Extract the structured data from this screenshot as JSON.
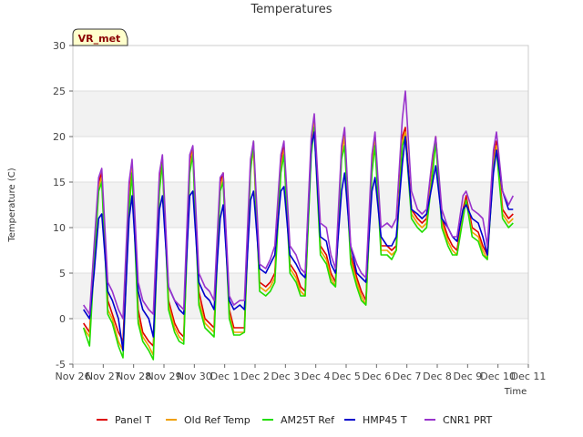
{
  "chart_data": {
    "type": "line",
    "title": "Temperatures",
    "xlabel": "Time",
    "ylabel": "Temperature (C)",
    "badge": "VR_met",
    "ylim": [
      -5,
      30
    ],
    "yticks": [
      -5,
      0,
      5,
      10,
      15,
      20,
      25,
      30
    ],
    "xlim": [
      0,
      15
    ],
    "xticks": [
      {
        "x": 0,
        "label": "Nov 26"
      },
      {
        "x": 1,
        "label": "Nov 27"
      },
      {
        "x": 2,
        "label": "Nov 28"
      },
      {
        "x": 3,
        "label": "Nov 29"
      },
      {
        "x": 4,
        "label": "Nov 30"
      },
      {
        "x": 5,
        "label": "Dec 1"
      },
      {
        "x": 6,
        "label": "Dec 2"
      },
      {
        "x": 7,
        "label": "Dec 3"
      },
      {
        "x": 8,
        "label": "Dec 4"
      },
      {
        "x": 9,
        "label": "Dec 5"
      },
      {
        "x": 10,
        "label": "Dec 6"
      },
      {
        "x": 11,
        "label": "Dec 7"
      },
      {
        "x": 12,
        "label": "Dec 8"
      },
      {
        "x": 13,
        "label": "Dec 9"
      },
      {
        "x": 14,
        "label": "Dec 10"
      },
      {
        "x": 15,
        "label": "Dec 11"
      }
    ],
    "grid": true,
    "legend_position": "bottom",
    "series": [
      {
        "name": "Panel T",
        "color": "#dd0000",
        "x": [
          0.35,
          0.55,
          0.7,
          0.85,
          0.95,
          1.15,
          1.3,
          1.5,
          1.65,
          1.85,
          1.95,
          2.15,
          2.3,
          2.5,
          2.65,
          2.85,
          2.95,
          3.15,
          3.35,
          3.5,
          3.65,
          3.85,
          3.95,
          4.15,
          4.35,
          4.5,
          4.65,
          4.85,
          4.95,
          5.15,
          5.3,
          5.5,
          5.65,
          5.85,
          5.95,
          6.15,
          6.35,
          6.5,
          6.65,
          6.85,
          6.95,
          7.15,
          7.35,
          7.5,
          7.65,
          7.85,
          7.95,
          8.15,
          8.35,
          8.5,
          8.65,
          8.85,
          8.95,
          9.15,
          9.35,
          9.5,
          9.65,
          9.85,
          9.95,
          10.15,
          10.35,
          10.5,
          10.65,
          10.85,
          10.95,
          11.15,
          11.35,
          11.5,
          11.65,
          11.85,
          11.95,
          12.15,
          12.35,
          12.5,
          12.65,
          12.85,
          12.95,
          13.15,
          13.35,
          13.5,
          13.65,
          13.85,
          13.95,
          14.15,
          14.35,
          14.5
        ],
        "y": [
          -0.5,
          -1.5,
          7,
          15,
          16,
          2,
          0.5,
          -1.5,
          -2.5,
          13,
          17,
          1,
          -1.5,
          -2.5,
          -3,
          15,
          17.5,
          2,
          -0.5,
          -1.5,
          -2,
          17,
          18.8,
          3,
          0,
          -0.5,
          -1,
          15,
          16,
          1,
          -1,
          -1,
          -1,
          17,
          19,
          4,
          3.5,
          4,
          5,
          17,
          19,
          6,
          5,
          3.5,
          3,
          19,
          22,
          8,
          7,
          5,
          4,
          18.5,
          20.5,
          7,
          4.5,
          3,
          2,
          17,
          20,
          8,
          8,
          7.5,
          8,
          20,
          21,
          12,
          11,
          10.5,
          11,
          17,
          20,
          11,
          9,
          8,
          7.5,
          12,
          13.5,
          10,
          9.5,
          8,
          7,
          17.5,
          19.5,
          12,
          11,
          11.5
        ]
      },
      {
        "name": "Old Ref Temp",
        "color": "#f0a000",
        "x": [
          0.35,
          0.55,
          0.7,
          0.85,
          0.95,
          1.15,
          1.3,
          1.5,
          1.65,
          1.85,
          1.95,
          2.15,
          2.3,
          2.5,
          2.65,
          2.85,
          2.95,
          3.15,
          3.35,
          3.5,
          3.65,
          3.85,
          3.95,
          4.15,
          4.35,
          4.5,
          4.65,
          4.85,
          4.95,
          5.15,
          5.3,
          5.5,
          5.65,
          5.85,
          5.95,
          6.15,
          6.35,
          6.5,
          6.65,
          6.85,
          6.95,
          7.15,
          7.35,
          7.5,
          7.65,
          7.85,
          7.95,
          8.15,
          8.35,
          8.5,
          8.65,
          8.85,
          8.95,
          9.15,
          9.35,
          9.5,
          9.65,
          9.85,
          9.95,
          10.15,
          10.35,
          10.5,
          10.65,
          10.85,
          10.95,
          11.15,
          11.35,
          11.5,
          11.65,
          11.85,
          11.95,
          12.15,
          12.35,
          12.5,
          12.65,
          12.85,
          12.95,
          13.15,
          13.35,
          13.5,
          13.65,
          13.85,
          13.95,
          14.15,
          14.35,
          14.5
        ],
        "y": [
          -1,
          -2,
          6,
          14.5,
          15.5,
          1,
          0,
          -2.5,
          -3.5,
          12.5,
          16.5,
          0,
          -2,
          -3,
          -4,
          14.5,
          17,
          1.5,
          -1,
          -2,
          -2.5,
          16.5,
          18.5,
          2,
          -0.5,
          -1,
          -1.5,
          14.5,
          15.5,
          0.5,
          -1.5,
          -1.5,
          -1.5,
          16.5,
          18.5,
          3.5,
          3,
          3.5,
          4.5,
          16.5,
          18.5,
          5.5,
          4.5,
          3,
          2.5,
          18.5,
          21.5,
          7.5,
          6.5,
          4.5,
          3.5,
          18,
          20,
          6.5,
          4,
          2.5,
          1.5,
          16.5,
          19.5,
          7.5,
          7.5,
          7,
          7.5,
          19.5,
          20.5,
          11.5,
          10.5,
          10,
          10.5,
          16.5,
          19.5,
          10.5,
          8.5,
          7.5,
          7,
          11.5,
          13,
          9.5,
          9,
          7.5,
          6.5,
          17,
          19,
          11.5,
          10.5,
          11
        ]
      },
      {
        "name": "AM25T Ref",
        "color": "#22dd00",
        "x": [
          0.35,
          0.55,
          0.7,
          0.85,
          0.95,
          1.15,
          1.3,
          1.5,
          1.65,
          1.85,
          1.95,
          2.15,
          2.3,
          2.5,
          2.65,
          2.85,
          2.95,
          3.15,
          3.35,
          3.5,
          3.65,
          3.85,
          3.95,
          4.15,
          4.35,
          4.5,
          4.65,
          4.85,
          4.95,
          5.15,
          5.3,
          5.5,
          5.65,
          5.85,
          5.95,
          6.15,
          6.35,
          6.5,
          6.65,
          6.85,
          6.95,
          7.15,
          7.35,
          7.5,
          7.65,
          7.85,
          7.95,
          8.15,
          8.35,
          8.5,
          8.65,
          8.85,
          8.95,
          9.15,
          9.35,
          9.5,
          9.65,
          9.85,
          9.95,
          10.15,
          10.35,
          10.5,
          10.65,
          10.85,
          10.95,
          11.15,
          11.35,
          11.5,
          11.65,
          11.85,
          11.95,
          12.15,
          12.35,
          12.5,
          12.65,
          12.85,
          12.95,
          13.15,
          13.35,
          13.5,
          13.65,
          13.85,
          13.95,
          14.15,
          14.35,
          14.5
        ],
        "y": [
          -1,
          -3,
          6,
          14,
          15,
          0.5,
          -0.5,
          -3,
          -4.3,
          12,
          16,
          -0.5,
          -2.5,
          -3.5,
          -4.5,
          14,
          17,
          1,
          -1.5,
          -2.5,
          -2.8,
          16,
          18,
          1.5,
          -1,
          -1.5,
          -2,
          14,
          15,
          0,
          -1.8,
          -1.8,
          -1.5,
          16,
          19.5,
          3,
          2.5,
          3,
          4,
          16,
          18,
          5,
          4,
          2.5,
          2.5,
          18,
          21,
          7,
          6,
          4,
          3.5,
          17.5,
          19,
          6,
          3.5,
          2,
          1.5,
          16,
          19,
          7,
          7,
          6.5,
          7.5,
          19,
          20,
          11,
          10,
          9.5,
          10,
          16,
          19.5,
          10,
          8,
          7,
          7,
          11,
          13,
          9,
          8.5,
          7,
          6.5,
          16.5,
          18.5,
          11,
          10,
          10.5
        ]
      },
      {
        "name": "HMP45 T",
        "color": "#0000cc",
        "x": [
          0.35,
          0.55,
          0.7,
          0.85,
          0.95,
          1.15,
          1.3,
          1.5,
          1.65,
          1.85,
          1.95,
          2.15,
          2.3,
          2.5,
          2.65,
          2.85,
          2.95,
          3.15,
          3.35,
          3.5,
          3.65,
          3.85,
          3.95,
          4.15,
          4.35,
          4.5,
          4.65,
          4.85,
          4.95,
          5.15,
          5.3,
          5.5,
          5.65,
          5.85,
          5.95,
          6.15,
          6.35,
          6.5,
          6.65,
          6.85,
          6.95,
          7.15,
          7.35,
          7.5,
          7.65,
          7.85,
          7.95,
          8.15,
          8.35,
          8.5,
          8.65,
          8.85,
          8.95,
          9.15,
          9.35,
          9.5,
          9.65,
          9.85,
          9.95,
          10.15,
          10.35,
          10.5,
          10.65,
          10.85,
          10.95,
          11.15,
          11.35,
          11.5,
          11.65,
          11.85,
          11.95,
          12.15,
          12.35,
          12.5,
          12.65,
          12.85,
          12.95,
          13.15,
          13.35,
          13.5,
          13.65,
          13.85,
          13.95,
          14.15,
          14.35,
          14.5
        ],
        "y": [
          1,
          0,
          5,
          11,
          11.5,
          3,
          2,
          0,
          -3.5,
          11,
          13.5,
          3,
          1,
          0,
          -2,
          12,
          13.5,
          3.5,
          2,
          1,
          0.5,
          13.5,
          14,
          4,
          2.5,
          2,
          1,
          11,
          12.5,
          2,
          1,
          1.5,
          1,
          13,
          14,
          5.5,
          5,
          6,
          7,
          14,
          14.5,
          7,
          6,
          5,
          4.5,
          19,
          20.5,
          9,
          8.5,
          6,
          5,
          14,
          16,
          8,
          5,
          4.5,
          4,
          14,
          15.5,
          9,
          8,
          8,
          9,
          17,
          20,
          12,
          11.5,
          11,
          11.5,
          15,
          16.8,
          11,
          10,
          9,
          8.5,
          12,
          12.5,
          11,
          10.5,
          9,
          7,
          16,
          18.5,
          14,
          12,
          12
        ]
      },
      {
        "name": "CNR1 PRT",
        "color": "#9933cc",
        "x": [
          0.35,
          0.55,
          0.7,
          0.85,
          0.95,
          1.15,
          1.3,
          1.5,
          1.65,
          1.85,
          1.95,
          2.15,
          2.3,
          2.5,
          2.65,
          2.85,
          2.95,
          3.15,
          3.35,
          3.5,
          3.65,
          3.85,
          3.95,
          4.15,
          4.35,
          4.5,
          4.65,
          4.85,
          4.95,
          5.15,
          5.3,
          5.5,
          5.65,
          5.85,
          5.95,
          6.15,
          6.35,
          6.5,
          6.65,
          6.85,
          6.95,
          7.15,
          7.35,
          7.5,
          7.65,
          7.85,
          7.95,
          8.15,
          8.35,
          8.5,
          8.65,
          8.85,
          8.95,
          9.15,
          9.35,
          9.5,
          9.65,
          9.85,
          9.95,
          10.15,
          10.35,
          10.5,
          10.65,
          10.85,
          10.95,
          11.15,
          11.35,
          11.5,
          11.65,
          11.85,
          11.95,
          12.15,
          12.35,
          12.5,
          12.65,
          12.85,
          12.95,
          13.15,
          13.35,
          13.5,
          13.65,
          13.85,
          13.95,
          14.15,
          14.35,
          14.5
        ],
        "y": [
          1.5,
          0.5,
          8,
          15.5,
          16.5,
          4,
          3,
          1,
          0,
          15,
          17.5,
          4,
          2,
          1,
          0.5,
          16,
          18,
          3.5,
          2,
          1.5,
          1,
          18,
          19,
          5,
          3.5,
          3,
          2,
          15.5,
          16,
          2.5,
          1.5,
          2,
          2,
          17.5,
          19.5,
          6,
          5.5,
          6.5,
          8,
          18,
          19.5,
          8,
          7,
          5.5,
          5,
          20,
          22.5,
          10.5,
          10,
          7,
          5.5,
          19,
          21,
          8,
          6,
          5,
          4.5,
          18,
          20.5,
          10,
          10.5,
          10,
          11,
          22,
          25,
          14,
          12,
          11.5,
          12,
          18,
          20,
          12,
          10,
          9,
          9,
          13.5,
          14,
          12,
          11.5,
          11,
          8,
          18.5,
          20.5,
          14,
          12.5,
          13.5
        ]
      }
    ]
  }
}
